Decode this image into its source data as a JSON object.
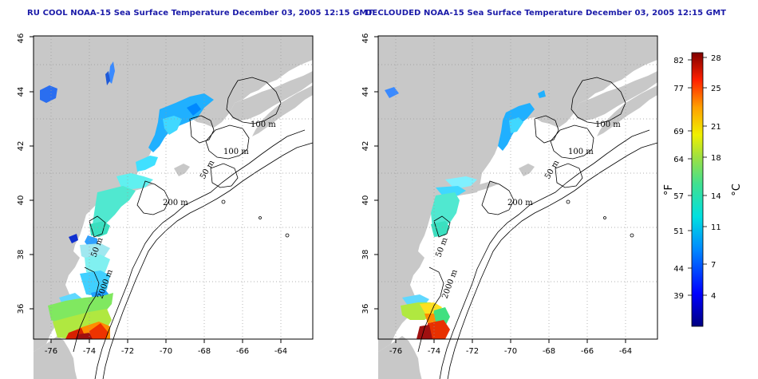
{
  "titles": {
    "left": "RU COOL NOAA-15 Sea Surface Temperature December 03, 2005 12:15 GMT",
    "right": "DECLOUDED NOAA-15 Sea Surface Temperature December 03, 2005 12:15 GMT"
  },
  "map": {
    "lon_range": [
      -77.2,
      -62.8
    ],
    "lat_range": [
      35,
      46
    ],
    "lon_ticks": [
      -76,
      -74,
      -72,
      -70,
      -68,
      -66,
      -64
    ],
    "lat_ticks": [
      36,
      38,
      40,
      42,
      44,
      46
    ],
    "grid": "dotted",
    "contour_labels": [
      "100 m",
      "100 m",
      "50 m",
      "200 m",
      "50 m",
      "2000 m"
    ]
  },
  "colorbar": {
    "fahrenheit_ticks": [
      "82",
      "77",
      "69",
      "64",
      "57",
      "51",
      "44",
      "39"
    ],
    "celsius_ticks": [
      "28",
      "25",
      "21",
      "18",
      "14",
      "11",
      "7",
      "4"
    ],
    "fahrenheit_unit": "°F",
    "celsius_unit": "°C",
    "range_c": [
      1,
      29
    ]
  },
  "colors": {
    "land": "#c8c8c8",
    "title": "#1a1aa8",
    "cold": "#0000aa",
    "warm": "#8b0000"
  }
}
